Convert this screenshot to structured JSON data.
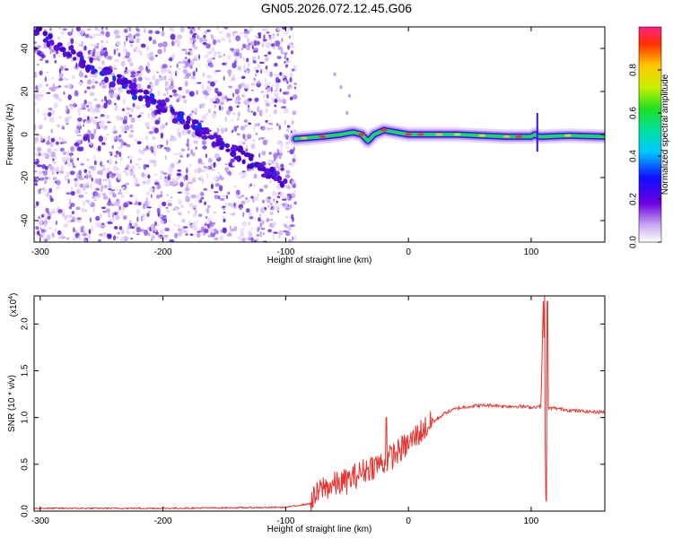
{
  "title": "GN05.2026.072.12.45.G06",
  "chart_data": [
    {
      "type": "heatmap",
      "name": "spectrogram",
      "xlabel": "Height of straight line (km)",
      "ylabel": "Frequency (Hz)",
      "xlim": [
        -305,
        160
      ],
      "ylim": [
        -50,
        50
      ],
      "xticks": [
        -300,
        -200,
        -100,
        0,
        100
      ],
      "xtick_labels": [
        "-300",
        "-200",
        "-100",
        "0",
        "100"
      ],
      "yticks": [
        -40,
        -20,
        0,
        20,
        40
      ],
      "ytick_labels": [
        "-40",
        "-20",
        "0",
        "20",
        "40"
      ],
      "noise_region": [
        -305,
        -92
      ],
      "diagonal_trace": {
        "x": [
          -305,
          -100
        ],
        "y": [
          48,
          -22
        ]
      },
      "signal_track": {
        "x": [
          -92,
          -70,
          -55,
          -45,
          -38,
          -33,
          -28,
          -20,
          -10,
          0,
          20,
          40,
          60,
          80,
          90,
          100,
          103,
          106,
          110,
          130,
          160
        ],
        "y": [
          -2,
          -1,
          0,
          1,
          0,
          -3,
          0,
          2,
          1,
          0,
          0,
          0,
          -0.5,
          -1,
          -1,
          -1,
          0,
          -1,
          -1,
          -0.5,
          -1
        ]
      },
      "colorbar": {
        "label": "Normalized spectral amplitude",
        "range": [
          0,
          1
        ],
        "ticks": [
          0.0,
          0.2,
          0.4,
          0.6,
          0.8
        ],
        "tick_labels": [
          "0.0",
          "0.2",
          "0.4",
          "0.6",
          "0.8"
        ]
      }
    },
    {
      "type": "line",
      "name": "snr",
      "xlabel": "Height of straight line (km)",
      "ylabel": "SNR (10 * v/v)",
      "scale_label": "(x10",
      "scale_exponent": "4",
      "xlim": [
        -305,
        160
      ],
      "ylim": [
        0,
        2.3
      ],
      "xticks": [
        -300,
        -200,
        -100,
        0,
        100
      ],
      "xtick_labels": [
        "-300",
        "-200",
        "-100",
        "0",
        "100"
      ],
      "yticks": [
        0.0,
        0.5,
        1.0,
        1.5,
        2.0
      ],
      "ytick_labels": [
        "0.0",
        "0.5",
        "1.0",
        "1.5",
        "2.0"
      ],
      "series": [
        {
          "name": "SNR",
          "color": "#e8332e",
          "x": [
            -305,
            -200,
            -100,
            -80,
            -70,
            -60,
            -50,
            -40,
            -30,
            -20,
            -10,
            0,
            10,
            20,
            30,
            40,
            50,
            60,
            70,
            80,
            90,
            100,
            108,
            110,
            112,
            113,
            114,
            116,
            120,
            130,
            140,
            150,
            160
          ],
          "y": [
            0.03,
            0.03,
            0.04,
            0.08,
            0.25,
            0.28,
            0.32,
            0.4,
            0.48,
            0.52,
            0.62,
            0.72,
            0.85,
            0.95,
            1.05,
            1.1,
            1.12,
            1.13,
            1.13,
            1.12,
            1.12,
            1.11,
            1.12,
            2.3,
            0.1,
            2.25,
            1.1,
            1.1,
            1.1,
            1.08,
            1.07,
            1.06,
            1.06
          ]
        }
      ],
      "spikes": [
        {
          "x": -18,
          "y": 1.0
        },
        {
          "x": 111,
          "y": 2.3
        },
        {
          "x": 112.5,
          "y": 0.1
        },
        {
          "x": 113.5,
          "y": 2.25
        }
      ]
    }
  ]
}
